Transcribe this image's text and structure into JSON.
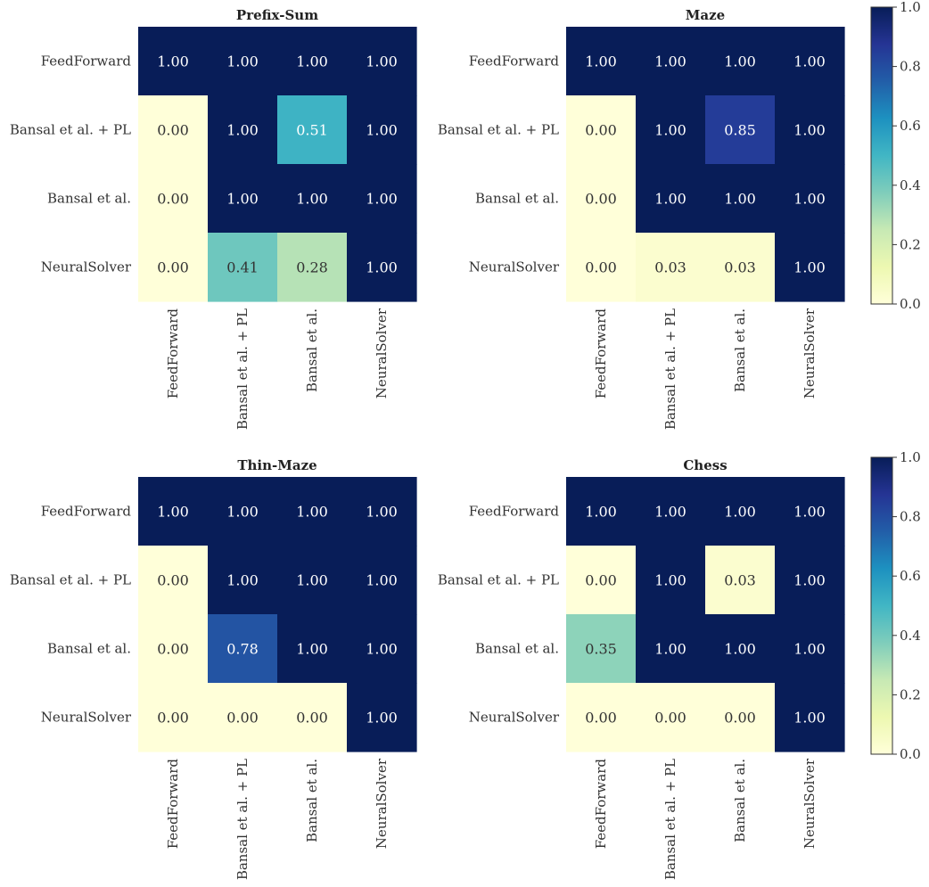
{
  "chart_data": [
    {
      "type": "heatmap",
      "title": "Prefix-Sum",
      "rows": [
        "FeedForward",
        "Bansal et al. + PL",
        "Bansal et al.",
        "NeuralSolver"
      ],
      "cols": [
        "FeedForward",
        "Bansal et al. + PL",
        "Bansal et al.",
        "NeuralSolver"
      ],
      "values": [
        [
          1.0,
          1.0,
          1.0,
          1.0
        ],
        [
          0.0,
          1.0,
          0.51,
          1.0
        ],
        [
          0.0,
          1.0,
          1.0,
          1.0
        ],
        [
          0.0,
          0.41,
          0.28,
          1.0
        ]
      ]
    },
    {
      "type": "heatmap",
      "title": "Maze",
      "rows": [
        "FeedForward",
        "Bansal et al. + PL",
        "Bansal et al.",
        "NeuralSolver"
      ],
      "cols": [
        "FeedForward",
        "Bansal et al. + PL",
        "Bansal et al.",
        "NeuralSolver"
      ],
      "values": [
        [
          1.0,
          1.0,
          1.0,
          1.0
        ],
        [
          0.0,
          1.0,
          0.85,
          1.0
        ],
        [
          0.0,
          1.0,
          1.0,
          1.0
        ],
        [
          0.0,
          0.03,
          0.03,
          1.0
        ]
      ]
    },
    {
      "type": "heatmap",
      "title": "Thin-Maze",
      "rows": [
        "FeedForward",
        "Bansal et al. + PL",
        "Bansal et al.",
        "NeuralSolver"
      ],
      "cols": [
        "FeedForward",
        "Bansal et al. + PL",
        "Bansal et al.",
        "NeuralSolver"
      ],
      "values": [
        [
          1.0,
          1.0,
          1.0,
          1.0
        ],
        [
          0.0,
          1.0,
          1.0,
          1.0
        ],
        [
          0.0,
          0.78,
          1.0,
          1.0
        ],
        [
          0.0,
          0.0,
          0.0,
          1.0
        ]
      ]
    },
    {
      "type": "heatmap",
      "title": "Chess",
      "rows": [
        "FeedForward",
        "Bansal et al. + PL",
        "Bansal et al.",
        "NeuralSolver"
      ],
      "cols": [
        "FeedForward",
        "Bansal et al. + PL",
        "Bansal et al.",
        "NeuralSolver"
      ],
      "values": [
        [
          1.0,
          1.0,
          1.0,
          1.0
        ],
        [
          0.0,
          1.0,
          0.03,
          1.0
        ],
        [
          0.35,
          1.0,
          1.0,
          1.0
        ],
        [
          0.0,
          0.0,
          0.0,
          1.0
        ]
      ]
    }
  ],
  "colorbar": {
    "colormap": "YlGnBu",
    "range": [
      0.0,
      1.0
    ],
    "ticks": [
      "0.0",
      "0.2",
      "0.4",
      "0.6",
      "0.8",
      "1.0"
    ]
  }
}
